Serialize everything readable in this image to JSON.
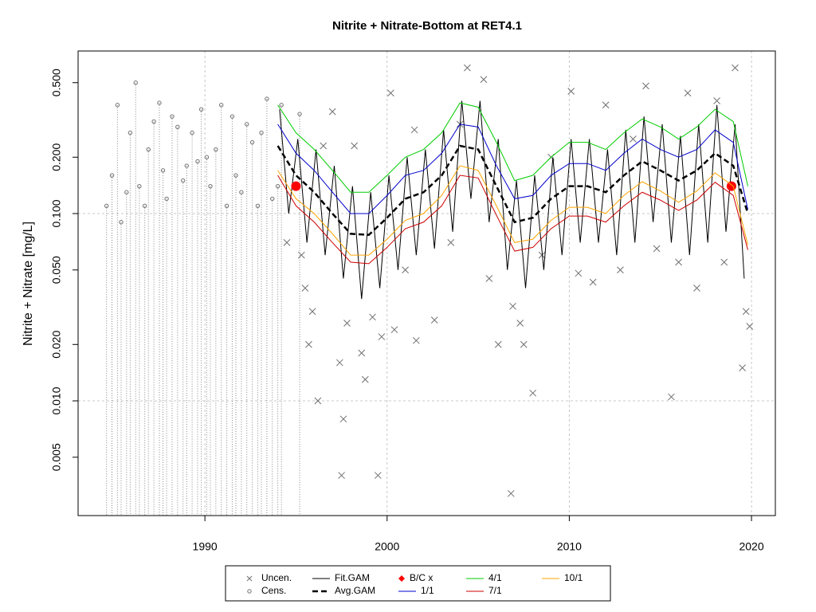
{
  "chart_data": {
    "type": "line",
    "title": "Nitrite + Nitrate-Bottom at RET4.1",
    "y_label": "Nitrite + Nitrate [mg/L]",
    "log_y": true,
    "xlim": [
      1983.04,
      2021.31
    ],
    "ylim": [
      0.00244,
      0.738
    ],
    "xticks": [
      1990,
      2000,
      2010,
      2020
    ],
    "yticks": [
      {
        "value": 0.005,
        "label": "0.005"
      },
      {
        "value": 0.01,
        "label": "0.010"
      },
      {
        "value": 0.02,
        "label": "0.020"
      },
      {
        "value": 0.05,
        "label": "0.050"
      },
      {
        "value": 0.1,
        "label": "0.100"
      },
      {
        "value": 0.2,
        "label": "0.200"
      },
      {
        "value": 0.5,
        "label": "0.500"
      }
    ],
    "x_grid": true,
    "y_grid": [
      0.01,
      0.1
    ],
    "series": [
      {
        "name": "Uncen.",
        "type": "scatter",
        "marker": "x",
        "color": "#707070",
        "x": [
          1994.5,
          1995.3,
          1995.5,
          1995.7,
          1995.9,
          1996.2,
          1996.5,
          1997.0,
          1997.4,
          1997.6,
          1997.5,
          1997.8,
          1998.2,
          1998.6,
          1998.8,
          1999.2,
          1999.5,
          1999.7,
          2000.2,
          2000.4,
          2001.0,
          2001.6,
          2002.6,
          2003.5,
          2004.0,
          2004.4,
          2005.3,
          2005.6,
          2006.1,
          2006.9,
          2007.3,
          2007.5,
          2008.0,
          2008.5,
          2009.0,
          2010.1,
          2010.5,
          2011.3,
          2012.0,
          2012.8,
          2014.2,
          2014.8,
          2015.6,
          2016.0,
          2016.5,
          2017.0,
          2018.1,
          2018.5,
          2019.1,
          2019.5,
          2019.7,
          2019.9,
          2006.8,
          2013.5,
          2001.5
        ],
        "values": [
          0.07,
          0.06,
          0.04,
          0.02,
          0.03,
          0.01,
          0.23,
          0.35,
          0.016,
          0.008,
          0.004,
          0.026,
          0.23,
          0.018,
          0.013,
          0.028,
          0.004,
          0.022,
          0.44,
          0.024,
          0.05,
          0.021,
          0.027,
          0.07,
          0.3,
          0.6,
          0.52,
          0.045,
          0.02,
          0.032,
          0.026,
          0.02,
          0.011,
          0.06,
          0.2,
          0.45,
          0.048,
          0.043,
          0.38,
          0.05,
          0.48,
          0.065,
          0.0105,
          0.055,
          0.44,
          0.04,
          0.4,
          0.055,
          0.6,
          0.015,
          0.03,
          0.025,
          0.0032,
          0.25,
          0.28
        ]
      },
      {
        "name": "Cens.",
        "type": "scatter",
        "marker": "circle",
        "censored": true,
        "color": "#707070",
        "x": [
          1984.6,
          1984.9,
          1985.2,
          1985.4,
          1985.7,
          1985.9,
          1986.2,
          1986.4,
          1986.7,
          1986.9,
          1987.2,
          1987.5,
          1987.7,
          1987.9,
          1988.2,
          1988.5,
          1988.8,
          1989.0,
          1989.3,
          1989.6,
          1989.8,
          1990.1,
          1990.3,
          1990.6,
          1990.9,
          1991.2,
          1991.5,
          1991.7,
          1992.0,
          1992.3,
          1992.6,
          1992.9,
          1993.1,
          1993.4,
          1993.7,
          1994.0,
          1994.2,
          1995.2
        ],
        "values": [
          0.11,
          0.16,
          0.38,
          0.09,
          0.13,
          0.27,
          0.5,
          0.14,
          0.11,
          0.22,
          0.31,
          0.39,
          0.17,
          0.12,
          0.33,
          0.29,
          0.15,
          0.18,
          0.27,
          0.19,
          0.36,
          0.2,
          0.14,
          0.22,
          0.38,
          0.11,
          0.33,
          0.16,
          0.13,
          0.3,
          0.24,
          0.11,
          0.27,
          0.41,
          0.12,
          0.14,
          0.38,
          0.34
        ]
      },
      {
        "name": "Fit.GAM",
        "color": "#000000",
        "width": 1,
        "x": [
          1994.1,
          1994.6,
          1995.1,
          1995.6,
          1996.1,
          1996.6,
          1997.1,
          1997.6,
          1998.1,
          1998.6,
          1999.1,
          1999.6,
          2000.1,
          2000.6,
          2001.1,
          2001.6,
          2002.1,
          2002.6,
          2003.1,
          2003.6,
          2004.1,
          2004.6,
          2005.1,
          2005.6,
          2006.1,
          2006.6,
          2007.1,
          2007.6,
          2008.1,
          2008.6,
          2009.1,
          2009.6,
          2010.1,
          2010.6,
          2011.1,
          2011.6,
          2012.1,
          2012.6,
          2013.1,
          2013.6,
          2014.1,
          2014.6,
          2015.1,
          2015.6,
          2016.1,
          2016.6,
          2017.1,
          2017.6,
          2018.1,
          2018.6,
          2019.1,
          2019.6
        ],
        "values": [
          0.36,
          0.1,
          0.25,
          0.07,
          0.22,
          0.06,
          0.18,
          0.045,
          0.14,
          0.035,
          0.13,
          0.04,
          0.16,
          0.05,
          0.2,
          0.06,
          0.22,
          0.065,
          0.28,
          0.08,
          0.4,
          0.12,
          0.4,
          0.09,
          0.25,
          0.05,
          0.15,
          0.04,
          0.16,
          0.05,
          0.2,
          0.06,
          0.25,
          0.07,
          0.25,
          0.07,
          0.22,
          0.06,
          0.28,
          0.07,
          0.33,
          0.09,
          0.3,
          0.07,
          0.26,
          0.06,
          0.3,
          0.07,
          0.38,
          0.08,
          0.3,
          0.045
        ]
      },
      {
        "name": "Avg.GAM",
        "color": "#000000",
        "width": 2.5,
        "dashed": true,
        "x": [
          1994,
          1995,
          1996,
          1997,
          1998,
          1999,
          2000,
          2001,
          2002,
          2003,
          2004,
          2005,
          2006,
          2007,
          2008,
          2009,
          2010,
          2011,
          2012,
          2013,
          2014,
          2015,
          2016,
          2017,
          2018,
          2019,
          2019.8
        ],
        "values": [
          0.23,
          0.16,
          0.13,
          0.1,
          0.078,
          0.077,
          0.095,
          0.12,
          0.13,
          0.16,
          0.23,
          0.22,
          0.14,
          0.09,
          0.095,
          0.12,
          0.14,
          0.14,
          0.13,
          0.16,
          0.19,
          0.17,
          0.15,
          0.17,
          0.21,
          0.18,
          0.1
        ]
      },
      {
        "name": "B/C x",
        "type": "scatter",
        "marker": "dot",
        "color": "#ff0000",
        "x": [
          1995.0,
          2018.9
        ],
        "values": [
          0.14,
          0.14
        ]
      },
      {
        "name": "1/1",
        "color": "#0000cd",
        "width": 1,
        "x": [
          1994,
          1995,
          1996,
          1997,
          1998,
          1999,
          2000,
          2001,
          2002,
          2003,
          2004,
          2005,
          2006,
          2007,
          2008,
          2009,
          2010,
          2011,
          2012,
          2013,
          2014,
          2015,
          2016,
          2017,
          2018,
          2019,
          2019.8
        ],
        "values": [
          0.3,
          0.21,
          0.17,
          0.13,
          0.1,
          0.1,
          0.125,
          0.16,
          0.17,
          0.21,
          0.3,
          0.29,
          0.18,
          0.12,
          0.125,
          0.16,
          0.185,
          0.185,
          0.17,
          0.21,
          0.25,
          0.22,
          0.2,
          0.22,
          0.28,
          0.24,
          0.105
        ]
      },
      {
        "name": "4/1",
        "color": "#00cd00",
        "width": 1,
        "x": [
          1994,
          1995,
          1996,
          1997,
          1998,
          1999,
          2000,
          2001,
          2002,
          2003,
          2004,
          2005,
          2006,
          2007,
          2008,
          2009,
          2010,
          2011,
          2012,
          2013,
          2014,
          2015,
          2016,
          2017,
          2018,
          2019,
          2019.8
        ],
        "values": [
          0.38,
          0.27,
          0.22,
          0.17,
          0.13,
          0.13,
          0.16,
          0.2,
          0.22,
          0.27,
          0.39,
          0.37,
          0.24,
          0.15,
          0.16,
          0.2,
          0.24,
          0.24,
          0.22,
          0.27,
          0.32,
          0.29,
          0.25,
          0.29,
          0.36,
          0.31,
          0.14
        ]
      },
      {
        "name": "7/1",
        "color": "#cd0000",
        "width": 1,
        "x": [
          1994,
          1995,
          1996,
          1997,
          1998,
          1999,
          2000,
          2001,
          2002,
          2003,
          2004,
          2005,
          2006,
          2007,
          2008,
          2009,
          2010,
          2011,
          2012,
          2013,
          2014,
          2015,
          2016,
          2017,
          2018,
          2019,
          2019.8
        ],
        "values": [
          0.16,
          0.11,
          0.09,
          0.07,
          0.055,
          0.054,
          0.066,
          0.083,
          0.09,
          0.11,
          0.16,
          0.155,
          0.098,
          0.063,
          0.066,
          0.083,
          0.097,
          0.097,
          0.09,
          0.11,
          0.13,
          0.118,
          0.104,
          0.118,
          0.147,
          0.125,
          0.064
        ]
      },
      {
        "name": "10/1",
        "color": "#ffa500",
        "width": 1,
        "x": [
          1994,
          1995,
          1996,
          1997,
          1998,
          1999,
          2000,
          2001,
          2002,
          2003,
          2004,
          2005,
          2006,
          2007,
          2008,
          2009,
          2010,
          2011,
          2012,
          2013,
          2014,
          2015,
          2016,
          2017,
          2018,
          2019,
          2019.8
        ],
        "values": [
          0.17,
          0.12,
          0.1,
          0.078,
          0.06,
          0.06,
          0.073,
          0.092,
          0.1,
          0.125,
          0.18,
          0.17,
          0.11,
          0.07,
          0.073,
          0.092,
          0.108,
          0.108,
          0.1,
          0.125,
          0.148,
          0.132,
          0.115,
          0.132,
          0.165,
          0.14,
          0.068
        ]
      }
    ]
  }
}
